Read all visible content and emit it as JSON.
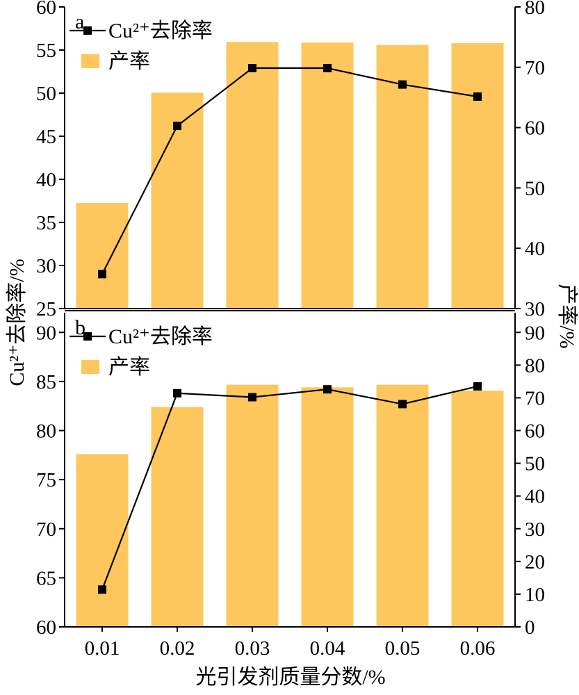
{
  "chart_data": [
    {
      "panel_label": "a",
      "type": "bar+line",
      "categories": [
        "0.01",
        "0.02",
        "0.03",
        "0.04",
        "0.05",
        "0.06"
      ],
      "series": [
        {
          "name": "Cu²⁺去除率",
          "kind": "line",
          "axis": "left",
          "values": [
            29.0,
            46.2,
            52.9,
            52.9,
            51.0,
            49.6
          ]
        },
        {
          "name": "产率",
          "kind": "bar",
          "axis": "right",
          "values": [
            47.5,
            65.8,
            74.2,
            74.1,
            73.7,
            74.0
          ]
        }
      ],
      "yleft_lim": [
        25,
        60
      ],
      "yleft_ticks": [
        "25",
        "30",
        "35",
        "40",
        "45",
        "50",
        "55",
        "60"
      ],
      "yright_lim": [
        30,
        80
      ],
      "yright_ticks": [
        "30",
        "40",
        "50",
        "60",
        "70",
        "80"
      ],
      "legend_position": "top-left"
    },
    {
      "panel_label": "b",
      "type": "bar+line",
      "categories": [
        "0.01",
        "0.02",
        "0.03",
        "0.04",
        "0.05",
        "0.06"
      ],
      "series": [
        {
          "name": "Cu²⁺去除率",
          "kind": "line",
          "axis": "left",
          "values": [
            63.8,
            83.8,
            83.4,
            84.2,
            82.7,
            84.5
          ]
        },
        {
          "name": "产率",
          "kind": "bar",
          "axis": "right",
          "values": [
            52.8,
            67.2,
            74.0,
            73.2,
            74.0,
            72.2
          ]
        }
      ],
      "yleft_lim": [
        60,
        92
      ],
      "yleft_ticks": [
        "60",
        "65",
        "70",
        "75",
        "80",
        "85",
        "90"
      ],
      "yright_lim": [
        0,
        96
      ],
      "yright_ticks": [
        "0",
        "10",
        "20",
        "30",
        "40",
        "50",
        "60",
        "70",
        "80",
        "90"
      ],
      "legend_position": "top-left"
    }
  ],
  "shared": {
    "xlabel": "光引发剂质量分数/%",
    "ylabel_left": "Cu²⁺去除率/%",
    "ylabel_right": "产率/%",
    "grid": false
  },
  "colors": {
    "bar": "#fdc75d",
    "line": "#000000",
    "marker": "#000000"
  }
}
